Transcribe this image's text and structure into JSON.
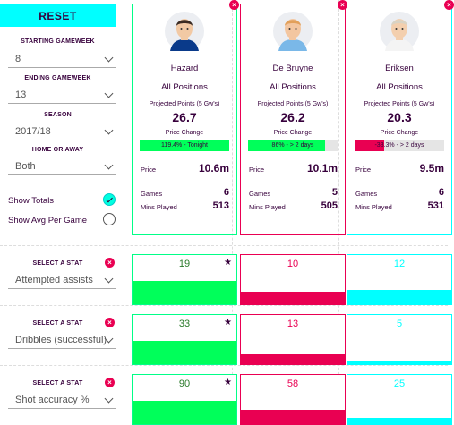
{
  "filters": {
    "reset_label": "RESET",
    "starting_label": "STARTING GAMEWEEK",
    "starting_value": "8",
    "ending_label": "ENDING GAMEWEEK",
    "ending_value": "13",
    "season_label": "SEASON",
    "season_value": "2017/18",
    "home_away_label": "HOME OR AWAY",
    "home_away_value": "Both",
    "show_totals_label": "Show Totals",
    "show_totals_checked": true,
    "show_avg_label": "Show Avg Per Game",
    "show_avg_checked": false
  },
  "players": [
    {
      "name": "Hazard",
      "position": "All Positions",
      "projected_label": "Projected Points (5 Gw's)",
      "projected_value": "26.7",
      "price_change_label": "Price Change",
      "price_change_text": "119.4% - Tonight",
      "price_change_fraction": 1.0,
      "price_label": "Price",
      "price_value": "10.6m",
      "games_label": "Games",
      "games_value": "6",
      "mins_label": "Mins Played",
      "mins_value": "513",
      "accent": "#00ff87",
      "fill_color": "#00ff5a"
    },
    {
      "name": "De Bruyne",
      "position": "All Positions",
      "projected_label": "Projected Points (5 Gw's)",
      "projected_value": "26.2",
      "price_change_label": "Price Change",
      "price_change_text": "86% - > 2 days",
      "price_change_fraction": 0.86,
      "price_label": "Price",
      "price_value": "10.1m",
      "games_label": "Games",
      "games_value": "5",
      "mins_label": "Mins Played",
      "mins_value": "505",
      "accent": "#e90052",
      "fill_color": "#00ff5a"
    },
    {
      "name": "Eriksen",
      "position": "All Positions",
      "projected_label": "Projected Points (5 Gw's)",
      "projected_value": "20.3",
      "price_change_label": "Price Change",
      "price_change_text": "-33.3% - > 2 days",
      "price_change_fraction": 0.333,
      "price_label": "Price",
      "price_value": "9.5m",
      "games_label": "Games",
      "games_value": "6",
      "mins_label": "Mins Played",
      "mins_value": "531",
      "accent": "#00ffff",
      "fill_color": "#e90052"
    }
  ],
  "stats": [
    {
      "select_label": "SELECT A STAT",
      "stat_name": "Attempted assists",
      "values": [
        "19",
        "10",
        "12"
      ],
      "leader_index": 0,
      "fill_fractions": [
        0.47,
        0.25,
        0.3
      ]
    },
    {
      "select_label": "SELECT A STAT",
      "stat_name": "Dribbles (successful)",
      "values": [
        "33",
        "13",
        "5"
      ],
      "leader_index": 0,
      "fill_fractions": [
        0.47,
        0.2,
        0.08
      ]
    },
    {
      "select_label": "SELECT A STAT",
      "stat_name": "Shot accuracy %",
      "values": [
        "90",
        "58",
        "25"
      ],
      "leader_index": 0,
      "fill_fractions": [
        0.47,
        0.3,
        0.13
      ]
    }
  ],
  "colors": {
    "navy": "#37003c",
    "green": "#00ff5a",
    "pink": "#e90052",
    "cyan": "#00ffff"
  }
}
